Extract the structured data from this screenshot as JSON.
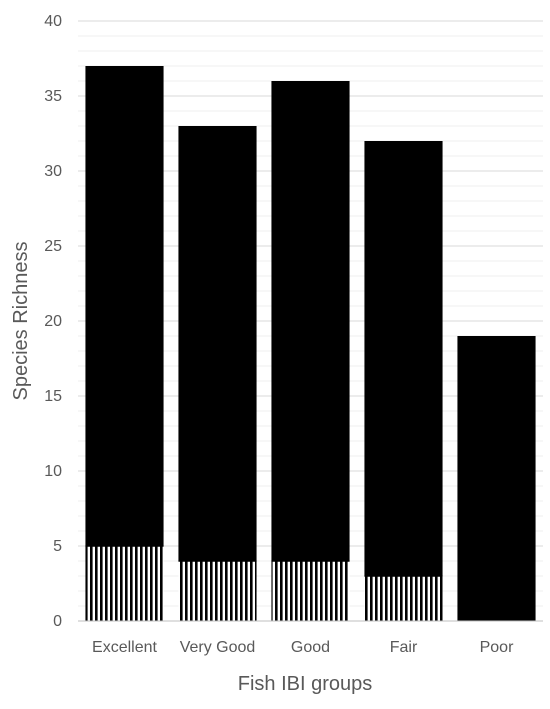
{
  "chart_data": {
    "type": "bar",
    "stacked": true,
    "xlabel": "Fish IBI groups",
    "ylabel": "Species Richness",
    "categories": [
      "Excellent",
      "Very Good",
      "Good",
      "Fair",
      "Poor"
    ],
    "series": [
      {
        "values": [
          5,
          4,
          4,
          3,
          0
        ],
        "color": "#000000",
        "pattern": "vertical-stripes"
      },
      {
        "values": [
          32,
          29,
          32,
          29,
          19
        ],
        "color": "#000000",
        "pattern": "solid"
      }
    ],
    "totals": [
      37,
      33,
      36,
      32,
      19
    ],
    "ylim": [
      0,
      40
    ],
    "yticks": [
      0,
      5,
      10,
      15,
      20,
      25,
      30,
      35,
      40
    ],
    "grid": {
      "major": true,
      "minor": true
    }
  }
}
